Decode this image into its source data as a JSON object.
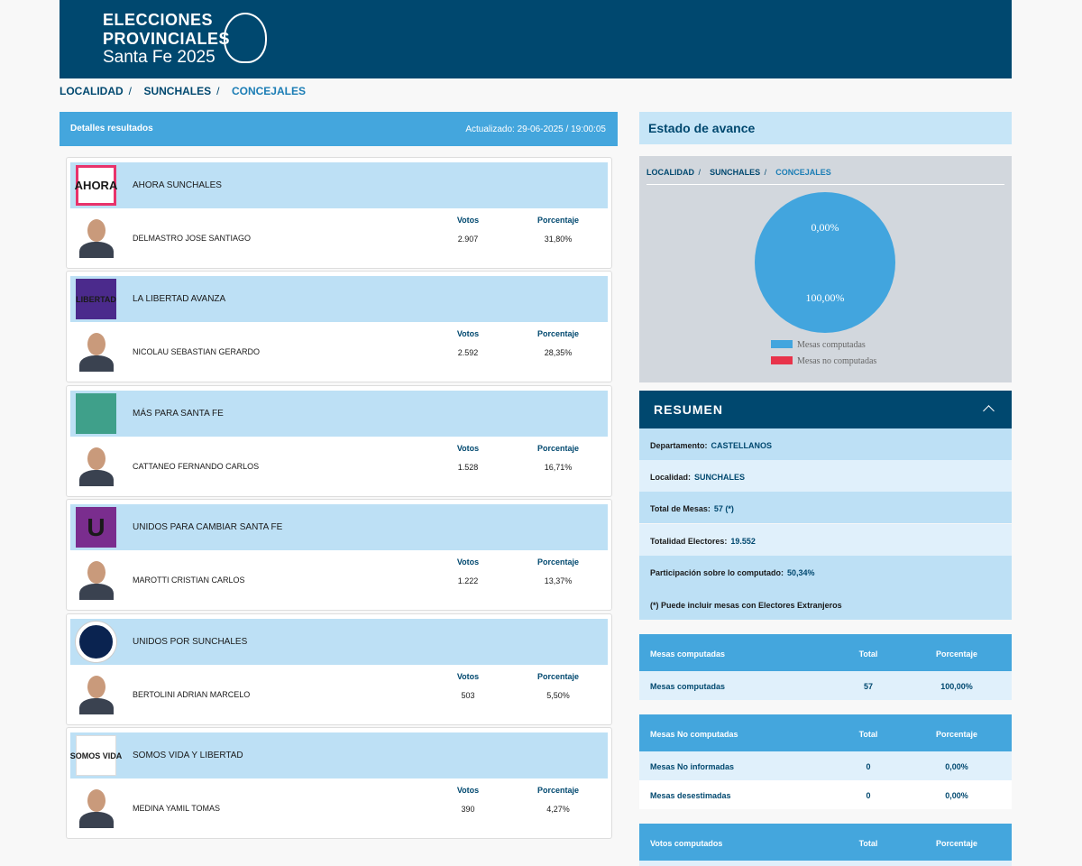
{
  "header": {
    "title_line1": "ELECCIONES",
    "title_line2": "PROVINCIALES",
    "title_line3": "Santa Fe 2025"
  },
  "breadcrumb": [
    "LOCALIDAD",
    "SUNCHALES",
    "CONCEJALES"
  ],
  "results": {
    "title": "Detalles resultados",
    "updated": "Actualizado: 29-06-2025 / 19:00:05",
    "votes_header": "Votos",
    "percent_header": "Porcentaje",
    "parties": [
      {
        "party": "AHORA SUNCHALES",
        "logo_text": "AHORA",
        "candidate": "DELMASTRO JOSE SANTIAGO",
        "votes": "2.907",
        "percent": "31,80%"
      },
      {
        "party": "LA LIBERTAD AVANZA",
        "logo_text": "LIBERTAD",
        "candidate": "NICOLAU SEBASTIAN GERARDO",
        "votes": "2.592",
        "percent": "28,35%"
      },
      {
        "party": "MÁS PARA SANTA FE",
        "candidate": "CATTANEO FERNANDO CARLOS",
        "votes": "1.528",
        "percent": "16,71%"
      },
      {
        "party": "UNIDOS PARA CAMBIAR SANTA FE",
        "logo_text": "U",
        "candidate": "MAROTTI CRISTIAN CARLOS",
        "votes": "1.222",
        "percent": "13,37%"
      },
      {
        "party": "UNIDOS POR SUNCHALES",
        "candidate": "BERTOLINI ADRIAN MARCELO",
        "votes": "503",
        "percent": "5,50%"
      },
      {
        "party": "SOMOS VIDA Y LIBERTAD",
        "logo_text": "SOMOS VIDA",
        "candidate": "MEDINA YAMIL TOMAS",
        "votes": "390",
        "percent": "4,27%"
      }
    ]
  },
  "progress": {
    "title": "Estado de avance",
    "chart": {
      "type": "pie",
      "categories": [
        "Mesas computadas",
        "Mesas no computadas"
      ],
      "values": [
        100,
        0
      ],
      "value_labels": [
        "100,00%",
        "0,00%"
      ],
      "colors": [
        "#42a5de",
        "#e8334a"
      ]
    }
  },
  "summary": {
    "title": "RESUMEN",
    "rows": [
      {
        "label": "Departamento:",
        "value": "CASTELLANOS"
      },
      {
        "label": "Localidad:",
        "value": "SUNCHALES"
      },
      {
        "label": "Total de Mesas:",
        "value": "57 (*)"
      },
      {
        "label": "Totalidad Electores:",
        "value": "19.552"
      },
      {
        "label": "Participación sobre lo computado:",
        "value": "50,34%"
      }
    ],
    "note": "(*) Puede incluir mesas con Electores Extranjeros"
  },
  "tables": [
    {
      "header": [
        "Mesas computadas",
        "Total",
        "Porcentaje"
      ],
      "rows": [
        [
          "Mesas computadas",
          "57",
          "100,00%"
        ]
      ]
    },
    {
      "header": [
        "Mesas No computadas",
        "Total",
        "Porcentaje"
      ],
      "rows": [
        [
          "Mesas No informadas",
          "0",
          "0,00%"
        ],
        [
          "Mesas desestimadas",
          "0",
          "0,00%"
        ]
      ]
    },
    {
      "header": [
        "Votos computados",
        "Total",
        "Porcentaje"
      ],
      "rows": []
    }
  ]
}
